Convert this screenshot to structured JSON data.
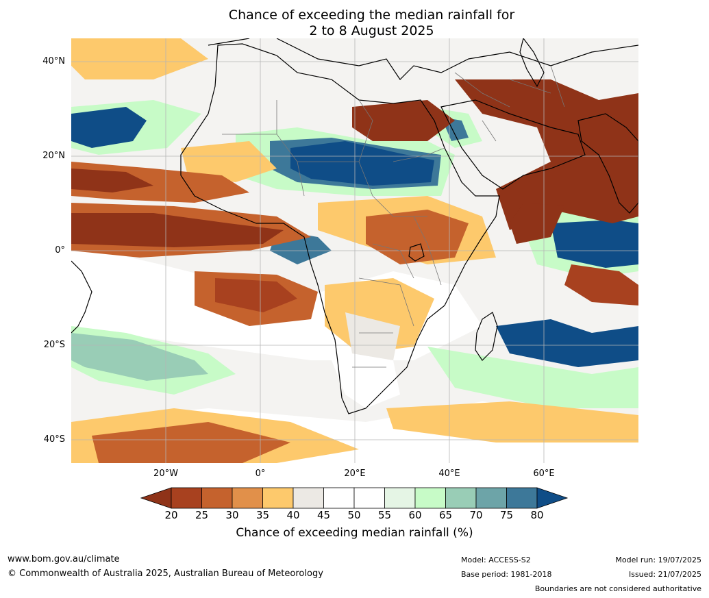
{
  "title": {
    "line1": "Chance of exceeding the median rainfall for",
    "line2": "2 to 8 August 2025"
  },
  "map": {
    "latitude_labels": [
      "40°N",
      "20°N",
      "0°",
      "20°S",
      "40°S"
    ],
    "longitude_labels": [
      "20°W",
      "0°",
      "20°E",
      "40°E",
      "60°E"
    ],
    "lon_range": [
      -40,
      80
    ],
    "lat_range": [
      -45,
      45
    ]
  },
  "colorbar": {
    "ticks": [
      "20",
      "25",
      "30",
      "35",
      "40",
      "45",
      "50",
      "55",
      "60",
      "65",
      "70",
      "75",
      "80"
    ],
    "colors": [
      "#8f3318",
      "#a8411f",
      "#c5622d",
      "#e1904a",
      "#fdc96c",
      "#ece9e4",
      "#ffffff",
      "#ffffff",
      "#e5f5e5",
      "#c7fbc7",
      "#99cdb6",
      "#6da4a8",
      "#3d7899",
      "#0f4d87"
    ],
    "label": "Chance of exceeding median rainfall (%)"
  },
  "footer": {
    "url": "www.bom.gov.au/climate",
    "copyright": "© Commonwealth of Australia 2025, Australian Bureau of Meteorology",
    "model": "Model: ACCESS-S2",
    "base_period": "Base period: 1981-2018",
    "model_run": "Model run: 19/07/2025",
    "issued": "Issued: 21/07/2025",
    "boundaries_note": "Boundaries are not considered authoritative"
  }
}
